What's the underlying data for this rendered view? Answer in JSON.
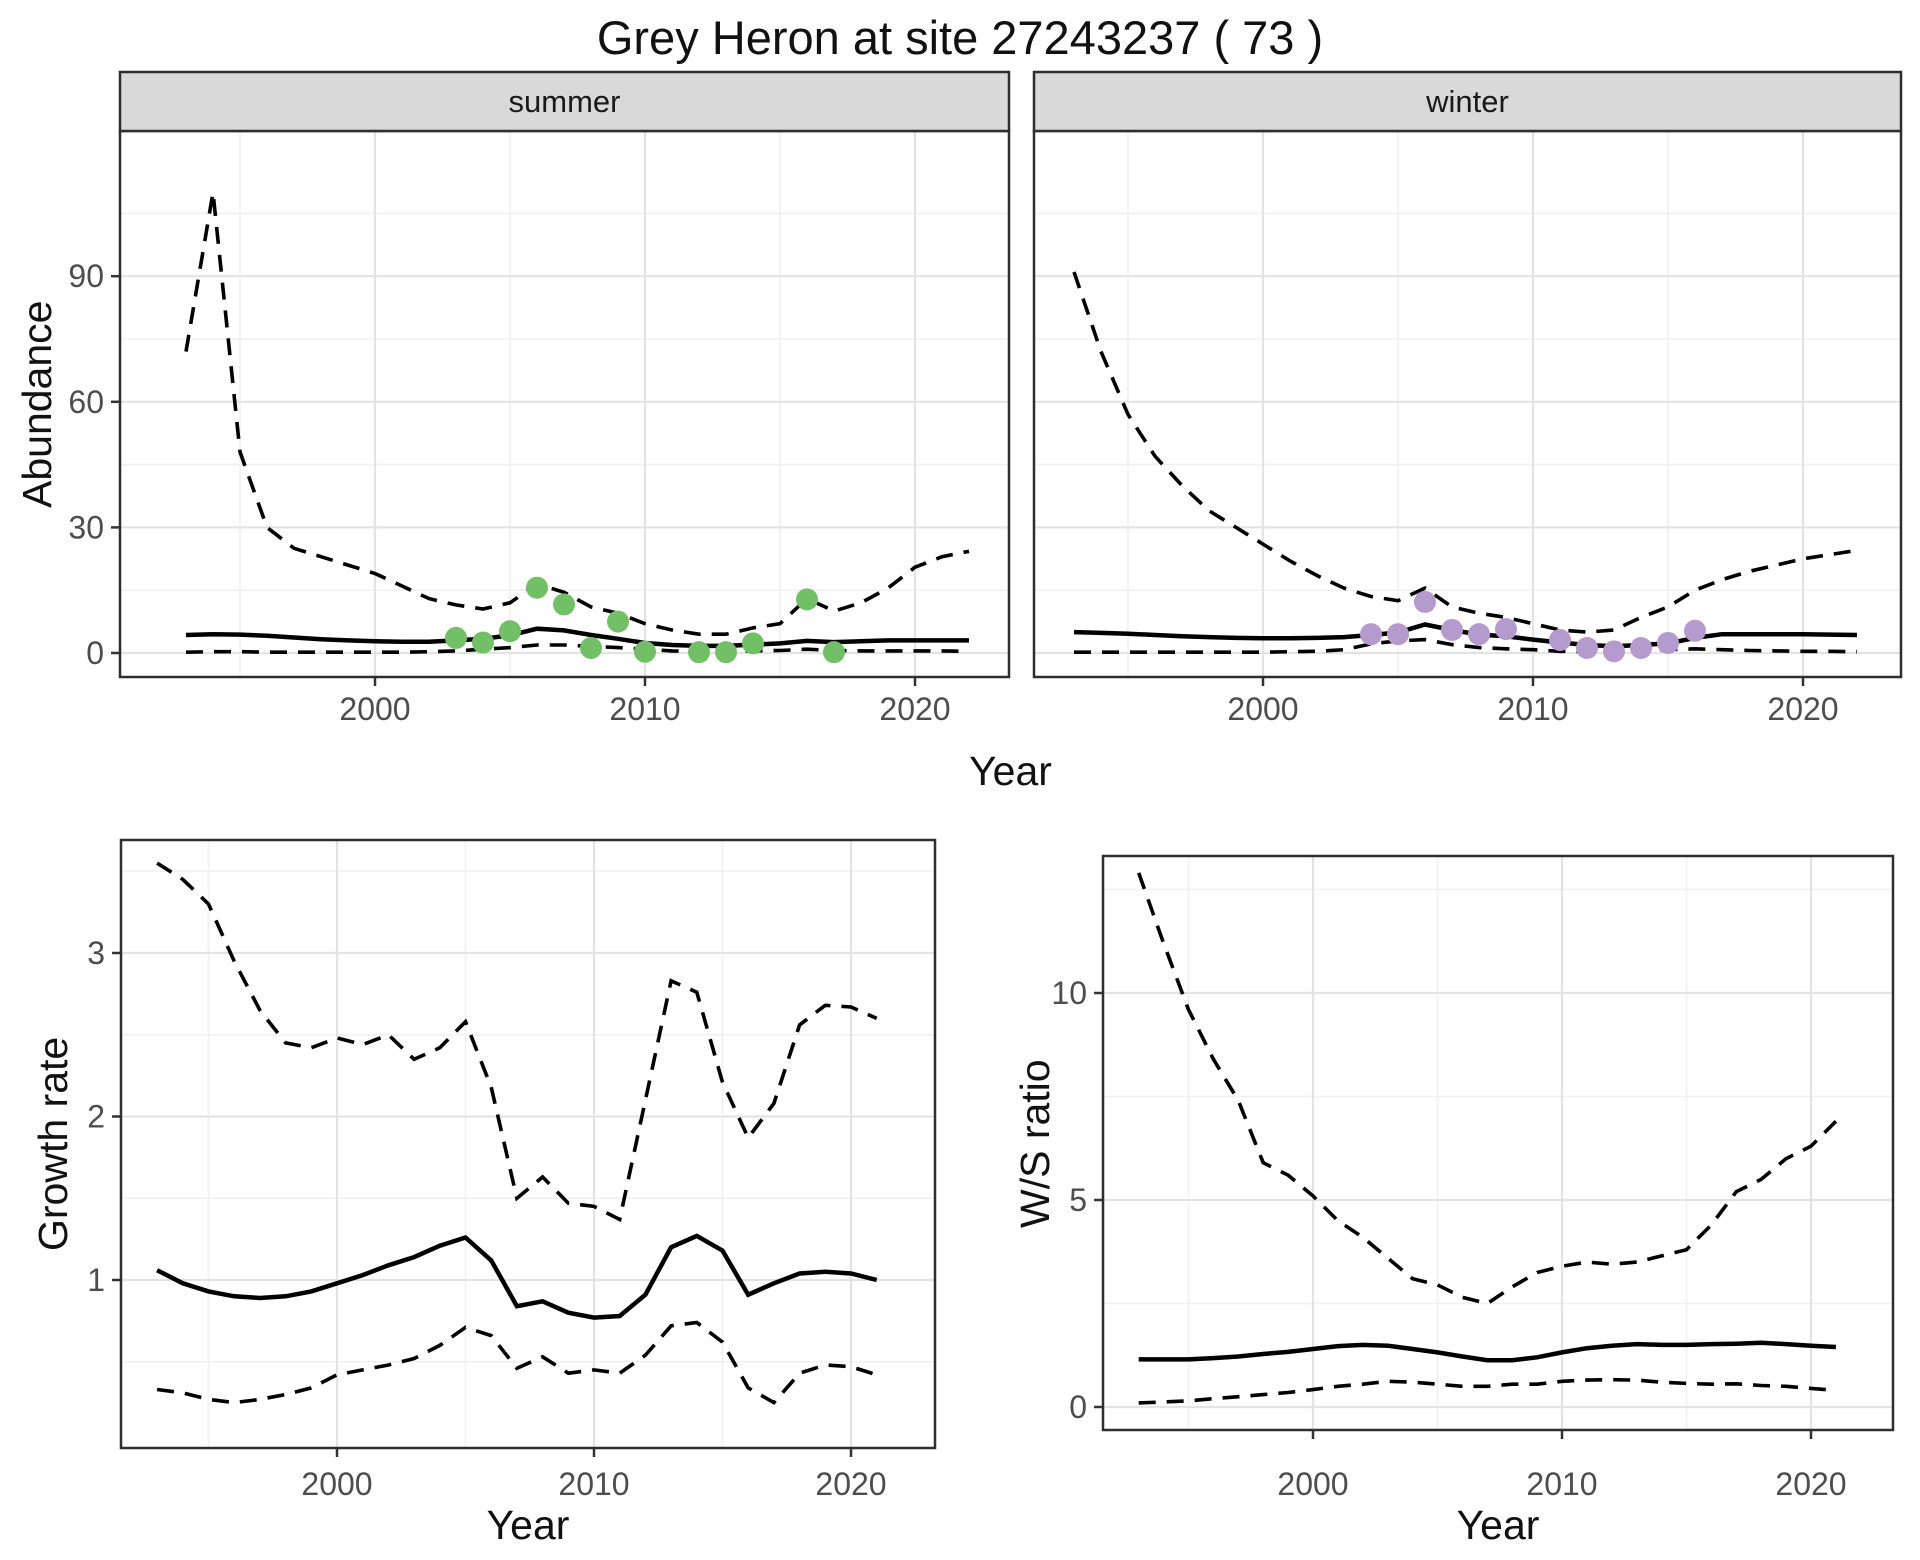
{
  "title": "Grey Heron at site 27243237 ( 73 )",
  "colors": {
    "summer_point": "#72c066",
    "winter_point": "#b59acd",
    "line": "#000000",
    "strip_bg": "#d9d9d9",
    "panel_border": "#2e2e2e",
    "grid_major": "#e3e3e3",
    "grid_minor": "#f0f0f0",
    "tick_label": "#4d4d4d",
    "background": "#ffffff"
  },
  "chart_data": [
    {
      "type": "line",
      "name": "abundance-summer",
      "facet": "summer",
      "xlabel": "Year",
      "ylabel": "Abundance",
      "legend_position": "none",
      "grid": true,
      "x": [
        1993,
        1994,
        1995,
        1996,
        1997,
        1998,
        1999,
        2000,
        2001,
        2002,
        2003,
        2004,
        2005,
        2006,
        2007,
        2008,
        2009,
        2010,
        2011,
        2012,
        2013,
        2014,
        2015,
        2016,
        2017,
        2018,
        2019,
        2020,
        2021,
        2022
      ],
      "series": [
        {
          "name": "upper-95ci",
          "style": "dashed",
          "values": [
            72,
            110,
            48,
            30,
            25,
            23,
            21,
            19,
            16,
            13,
            11.5,
            10.5,
            12,
            16.5,
            14.5,
            11,
            9.5,
            7,
            5.5,
            4.5,
            4.5,
            6,
            7,
            13,
            10,
            12,
            15.5,
            20.5,
            23,
            24.3
          ]
        },
        {
          "name": "median",
          "style": "solid",
          "values": [
            4.3,
            4.5,
            4.4,
            4.1,
            3.7,
            3.3,
            3.0,
            2.8,
            2.7,
            2.7,
            3.0,
            3.4,
            4.2,
            5.8,
            5.4,
            4.3,
            3.4,
            2.4,
            1.9,
            1.7,
            1.7,
            2.0,
            2.3,
            2.9,
            2.6,
            2.8,
            3.0,
            3.0,
            3.0,
            3.0
          ]
        },
        {
          "name": "lower-95ci",
          "style": "dashed",
          "values": [
            0.2,
            0.3,
            0.3,
            0.2,
            0.2,
            0.2,
            0.2,
            0.2,
            0.2,
            0.3,
            0.5,
            0.9,
            1.3,
            1.9,
            1.9,
            1.6,
            1.3,
            0.9,
            0.5,
            0.3,
            0.3,
            0.5,
            0.6,
            0.9,
            0.6,
            0.5,
            0.5,
            0.5,
            0.5,
            0.4
          ]
        }
      ],
      "points": {
        "name": "observed-counts-summer",
        "color": "#72c066",
        "x": [
          2003,
          2004,
          2005,
          2006,
          2007,
          2008,
          2009,
          2010,
          2012,
          2013,
          2014,
          2016,
          2017
        ],
        "y": [
          3.6,
          2.5,
          5.2,
          15.6,
          11.6,
          1.2,
          7.5,
          0.3,
          0.2,
          0.2,
          2.3,
          12.8,
          0.2
        ]
      },
      "xticks": [
        2000,
        2010,
        2020
      ],
      "xticks_minor": [
        1995,
        2005,
        2015
      ],
      "yticks": [
        0,
        30,
        60,
        90
      ],
      "yticks_minor": [
        15,
        45,
        75,
        105
      ],
      "xlim": [
        1990.6,
        2023.5
      ],
      "ylim": [
        -5.7,
        124.7
      ]
    },
    {
      "type": "line",
      "name": "abundance-winter",
      "facet": "winter",
      "xlabel": "Year",
      "ylabel": "Abundance",
      "legend_position": "none",
      "grid": true,
      "x": [
        1993,
        1994,
        1995,
        1996,
        1997,
        1998,
        1999,
        2000,
        2001,
        2002,
        2003,
        2004,
        2005,
        2006,
        2007,
        2008,
        2009,
        2010,
        2011,
        2012,
        2013,
        2014,
        2015,
        2016,
        2017,
        2018,
        2019,
        2020,
        2021,
        2022
      ],
      "series": [
        {
          "name": "upper-95ci",
          "style": "dashed",
          "values": [
            91,
            72,
            57,
            47,
            40,
            34,
            30,
            26,
            22,
            18.5,
            15.5,
            13.5,
            12.5,
            15.5,
            11,
            9.5,
            8.5,
            7,
            5.5,
            5,
            5.5,
            8.5,
            11,
            15,
            17.5,
            19.5,
            21,
            22.5,
            23.5,
            24.5
          ]
        },
        {
          "name": "median",
          "style": "solid",
          "values": [
            5.0,
            4.8,
            4.6,
            4.3,
            4.0,
            3.8,
            3.6,
            3.5,
            3.5,
            3.6,
            3.8,
            4.3,
            4.9,
            6.8,
            5.5,
            4.4,
            4.0,
            3.2,
            2.5,
            1.9,
            1.6,
            1.9,
            2.3,
            3.6,
            4.5,
            4.5,
            4.5,
            4.5,
            4.4,
            4.3
          ]
        },
        {
          "name": "lower-95ci",
          "style": "dashed",
          "values": [
            0.2,
            0.2,
            0.2,
            0.2,
            0.2,
            0.2,
            0.2,
            0.2,
            0.3,
            0.4,
            0.8,
            2.2,
            2.9,
            3.2,
            2.0,
            1.3,
            1.0,
            0.8,
            0.4,
            0.3,
            0.3,
            0.5,
            0.8,
            1.0,
            0.8,
            0.6,
            0.5,
            0.4,
            0.4,
            0.3
          ]
        }
      ],
      "points": {
        "name": "observed-counts-winter",
        "color": "#b59acd",
        "x": [
          2004,
          2005,
          2006,
          2007,
          2008,
          2009,
          2011,
          2012,
          2013,
          2014,
          2015,
          2016
        ],
        "y": [
          4.5,
          4.5,
          12.2,
          5.5,
          4.5,
          5.7,
          3.1,
          1.2,
          0.4,
          1.2,
          2.4,
          5.3
        ]
      },
      "xticks": [
        2000,
        2010,
        2020
      ],
      "xticks_minor": [
        1995,
        2005,
        2015
      ],
      "yticks": [
        0,
        30,
        60,
        90
      ],
      "yticks_minor": [
        15,
        45,
        75,
        105
      ],
      "xlim": [
        1991.5,
        2023.6
      ],
      "ylim": [
        -5.7,
        124.7
      ]
    },
    {
      "type": "line",
      "name": "growth-rate",
      "facet": "",
      "xlabel": "Year",
      "ylabel": "Growth rate",
      "legend_position": "none",
      "grid": true,
      "x": [
        1993,
        1994,
        1995,
        1996,
        1997,
        1998,
        1999,
        2000,
        2001,
        2002,
        2003,
        2004,
        2005,
        2006,
        2007,
        2008,
        2009,
        2010,
        2011,
        2012,
        2013,
        2014,
        2015,
        2016,
        2017,
        2018,
        2019,
        2020,
        2021
      ],
      "series": [
        {
          "name": "upper-95ci",
          "style": "dashed",
          "values": [
            3.55,
            3.45,
            3.3,
            2.95,
            2.65,
            2.45,
            2.42,
            2.48,
            2.44,
            2.5,
            2.35,
            2.42,
            2.58,
            2.18,
            1.5,
            1.63,
            1.47,
            1.45,
            1.37,
            2.1,
            2.83,
            2.76,
            2.21,
            1.87,
            2.08,
            2.56,
            2.68,
            2.67,
            2.6
          ]
        },
        {
          "name": "median",
          "style": "solid",
          "values": [
            1.06,
            0.98,
            0.93,
            0.9,
            0.89,
            0.9,
            0.93,
            0.98,
            1.03,
            1.09,
            1.14,
            1.21,
            1.26,
            1.12,
            0.84,
            0.87,
            0.8,
            0.77,
            0.78,
            0.91,
            1.2,
            1.27,
            1.18,
            0.91,
            0.98,
            1.04,
            1.05,
            1.04,
            1.0
          ]
        },
        {
          "name": "lower-95ci",
          "style": "dashed",
          "values": [
            0.33,
            0.31,
            0.27,
            0.25,
            0.27,
            0.3,
            0.34,
            0.42,
            0.45,
            0.48,
            0.52,
            0.6,
            0.71,
            0.66,
            0.46,
            0.53,
            0.43,
            0.45,
            0.43,
            0.54,
            0.72,
            0.74,
            0.62,
            0.34,
            0.25,
            0.43,
            0.48,
            0.47,
            0.42
          ]
        }
      ],
      "points": null,
      "xticks": [
        2000,
        2010,
        2020
      ],
      "xticks_minor": [
        1995,
        2005,
        2015
      ],
      "yticks": [
        1,
        2,
        3
      ],
      "yticks_minor": [
        0.5,
        1.5,
        2.5,
        3.5
      ],
      "xlim": [
        1991.6,
        2023.3
      ],
      "ylim": [
        0.05,
        3.69
      ]
    },
    {
      "type": "line",
      "name": "ws-ratio",
      "facet": "",
      "xlabel": "Year",
      "ylabel": "W/S ratio",
      "legend_position": "none",
      "grid": true,
      "x": [
        1993,
        1994,
        1995,
        1996,
        1997,
        1998,
        1999,
        2000,
        2001,
        2002,
        2003,
        2004,
        2005,
        2006,
        2007,
        2008,
        2009,
        2010,
        2011,
        2012,
        2013,
        2014,
        2015,
        2016,
        2017,
        2018,
        2019,
        2020,
        2021
      ],
      "series": [
        {
          "name": "upper-95ci",
          "style": "dashed",
          "values": [
            12.9,
            11.2,
            9.6,
            8.4,
            7.4,
            5.9,
            5.6,
            5.1,
            4.5,
            4.1,
            3.6,
            3.1,
            2.95,
            2.65,
            2.5,
            2.9,
            3.25,
            3.4,
            3.5,
            3.45,
            3.5,
            3.65,
            3.8,
            4.4,
            5.2,
            5.5,
            6.0,
            6.3,
            6.9
          ]
        },
        {
          "name": "median",
          "style": "solid",
          "values": [
            1.15,
            1.15,
            1.15,
            1.18,
            1.22,
            1.28,
            1.33,
            1.4,
            1.47,
            1.5,
            1.48,
            1.4,
            1.32,
            1.22,
            1.13,
            1.13,
            1.2,
            1.32,
            1.42,
            1.48,
            1.52,
            1.5,
            1.5,
            1.52,
            1.53,
            1.55,
            1.52,
            1.48,
            1.45
          ]
        },
        {
          "name": "lower-95ci",
          "style": "dashed",
          "values": [
            0.1,
            0.12,
            0.15,
            0.2,
            0.25,
            0.3,
            0.35,
            0.42,
            0.5,
            0.55,
            0.62,
            0.6,
            0.55,
            0.5,
            0.5,
            0.55,
            0.55,
            0.62,
            0.65,
            0.66,
            0.65,
            0.6,
            0.57,
            0.55,
            0.56,
            0.52,
            0.5,
            0.45,
            0.4
          ]
        }
      ],
      "points": null,
      "xticks": [
        2000,
        2010,
        2020
      ],
      "xticks_minor": [
        1995,
        2005,
        2015
      ],
      "yticks": [
        0,
        5,
        10
      ],
      "yticks_minor": [
        2.5,
        7.5,
        12.5
      ],
      "xlim": [
        1991.6,
        2023.3
      ],
      "ylim": [
        -0.6,
        13.3
      ]
    }
  ]
}
